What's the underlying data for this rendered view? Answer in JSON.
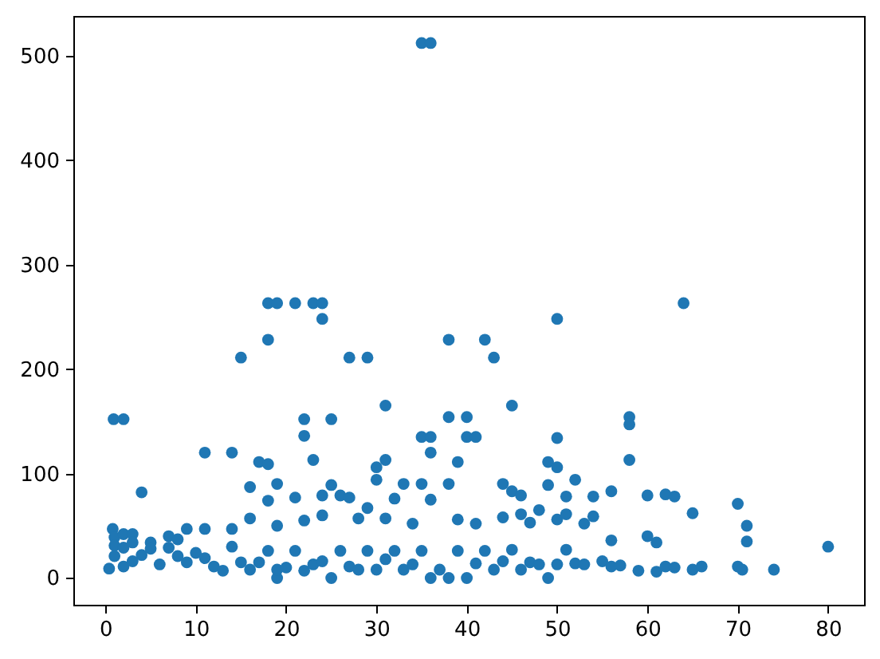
{
  "chart_data": {
    "type": "scatter",
    "color": "#1f77b4",
    "marker": "circle",
    "grid": false,
    "xlim": [
      -3.56,
      83.98
    ],
    "ylim": [
      -25.6,
      537.9
    ],
    "xticks": [
      0,
      10,
      20,
      30,
      40,
      50,
      60,
      70,
      80
    ],
    "yticks": [
      0,
      100,
      200,
      300,
      400,
      500
    ],
    "x": [
      35,
      36,
      18,
      19,
      21,
      23,
      24,
      64,
      24,
      50,
      18,
      38,
      42,
      15,
      27,
      29,
      43,
      31,
      45,
      0.9,
      2,
      22,
      25,
      38,
      40,
      58,
      58,
      22,
      35,
      36,
      40,
      41,
      50,
      11,
      14,
      36,
      17,
      18,
      23,
      31,
      39,
      49,
      58,
      30,
      50,
      4,
      16,
      19,
      25,
      30,
      33,
      35,
      38,
      44,
      49,
      52,
      18,
      21,
      24,
      26,
      27,
      32,
      36,
      45,
      46,
      51,
      54,
      56,
      60,
      62,
      63,
      29,
      70,
      65,
      0.8,
      11,
      14,
      16,
      19,
      22,
      24,
      28,
      31,
      34,
      39,
      41,
      44,
      46,
      47,
      48,
      50,
      51,
      53,
      54,
      71,
      1,
      2,
      3,
      5,
      7,
      9,
      60,
      56,
      71,
      61,
      0.4,
      1,
      1,
      2,
      2,
      3,
      3,
      4,
      5,
      6,
      7,
      8,
      8,
      9,
      10,
      11,
      12,
      13,
      14,
      15,
      16,
      17,
      18,
      19,
      19,
      20,
      21,
      22,
      23,
      24,
      25,
      26,
      27,
      28,
      29,
      30,
      31,
      32,
      33,
      34,
      35,
      36,
      37,
      38,
      39,
      40,
      41,
      42,
      43,
      44,
      45,
      46,
      47,
      48,
      49,
      50,
      51,
      52,
      53,
      55,
      56,
      57,
      59,
      61,
      62,
      63,
      65,
      66,
      70,
      70.5,
      74,
      80
    ],
    "values": [
      512,
      512,
      263,
      263,
      263,
      263,
      263,
      263,
      248,
      248,
      228,
      228,
      228,
      211,
      211,
      211,
      211,
      165,
      165,
      152,
      152,
      152,
      152,
      154,
      154,
      154,
      147,
      136,
      135,
      135,
      135,
      135,
      134,
      120,
      120,
      120,
      111,
      109,
      113,
      113,
      111,
      111,
      113,
      106,
      106,
      82,
      87,
      90,
      89,
      94,
      90,
      90,
      90,
      90,
      89,
      94,
      74,
      77,
      79,
      79,
      77,
      76,
      75,
      83,
      79,
      78,
      78,
      83,
      79,
      80,
      78,
      67,
      71,
      62,
      47,
      47,
      47,
      57,
      50,
      55,
      60,
      57,
      57,
      52,
      56,
      52,
      58,
      61,
      53,
      65,
      56,
      61,
      52,
      59,
      50,
      39,
      42,
      42,
      34,
      40,
      47,
      40,
      36,
      35,
      34,
      9,
      21,
      31,
      11,
      29,
      16,
      34,
      22,
      28,
      13,
      29,
      21,
      37,
      15,
      24,
      19,
      11,
      7,
      30,
      15,
      8,
      15,
      26,
      0,
      8,
      10,
      26,
      7,
      13,
      16,
      0,
      26,
      11,
      8,
      26,
      8,
      18,
      26,
      8,
      13,
      26,
      0,
      8,
      0,
      26,
      0,
      14,
      26,
      8,
      16,
      27,
      8,
      15,
      13,
      0,
      13,
      27,
      14,
      13,
      16,
      11,
      12,
      7,
      6,
      11,
      10,
      8,
      11,
      11,
      8,
      8,
      30
    ]
  }
}
